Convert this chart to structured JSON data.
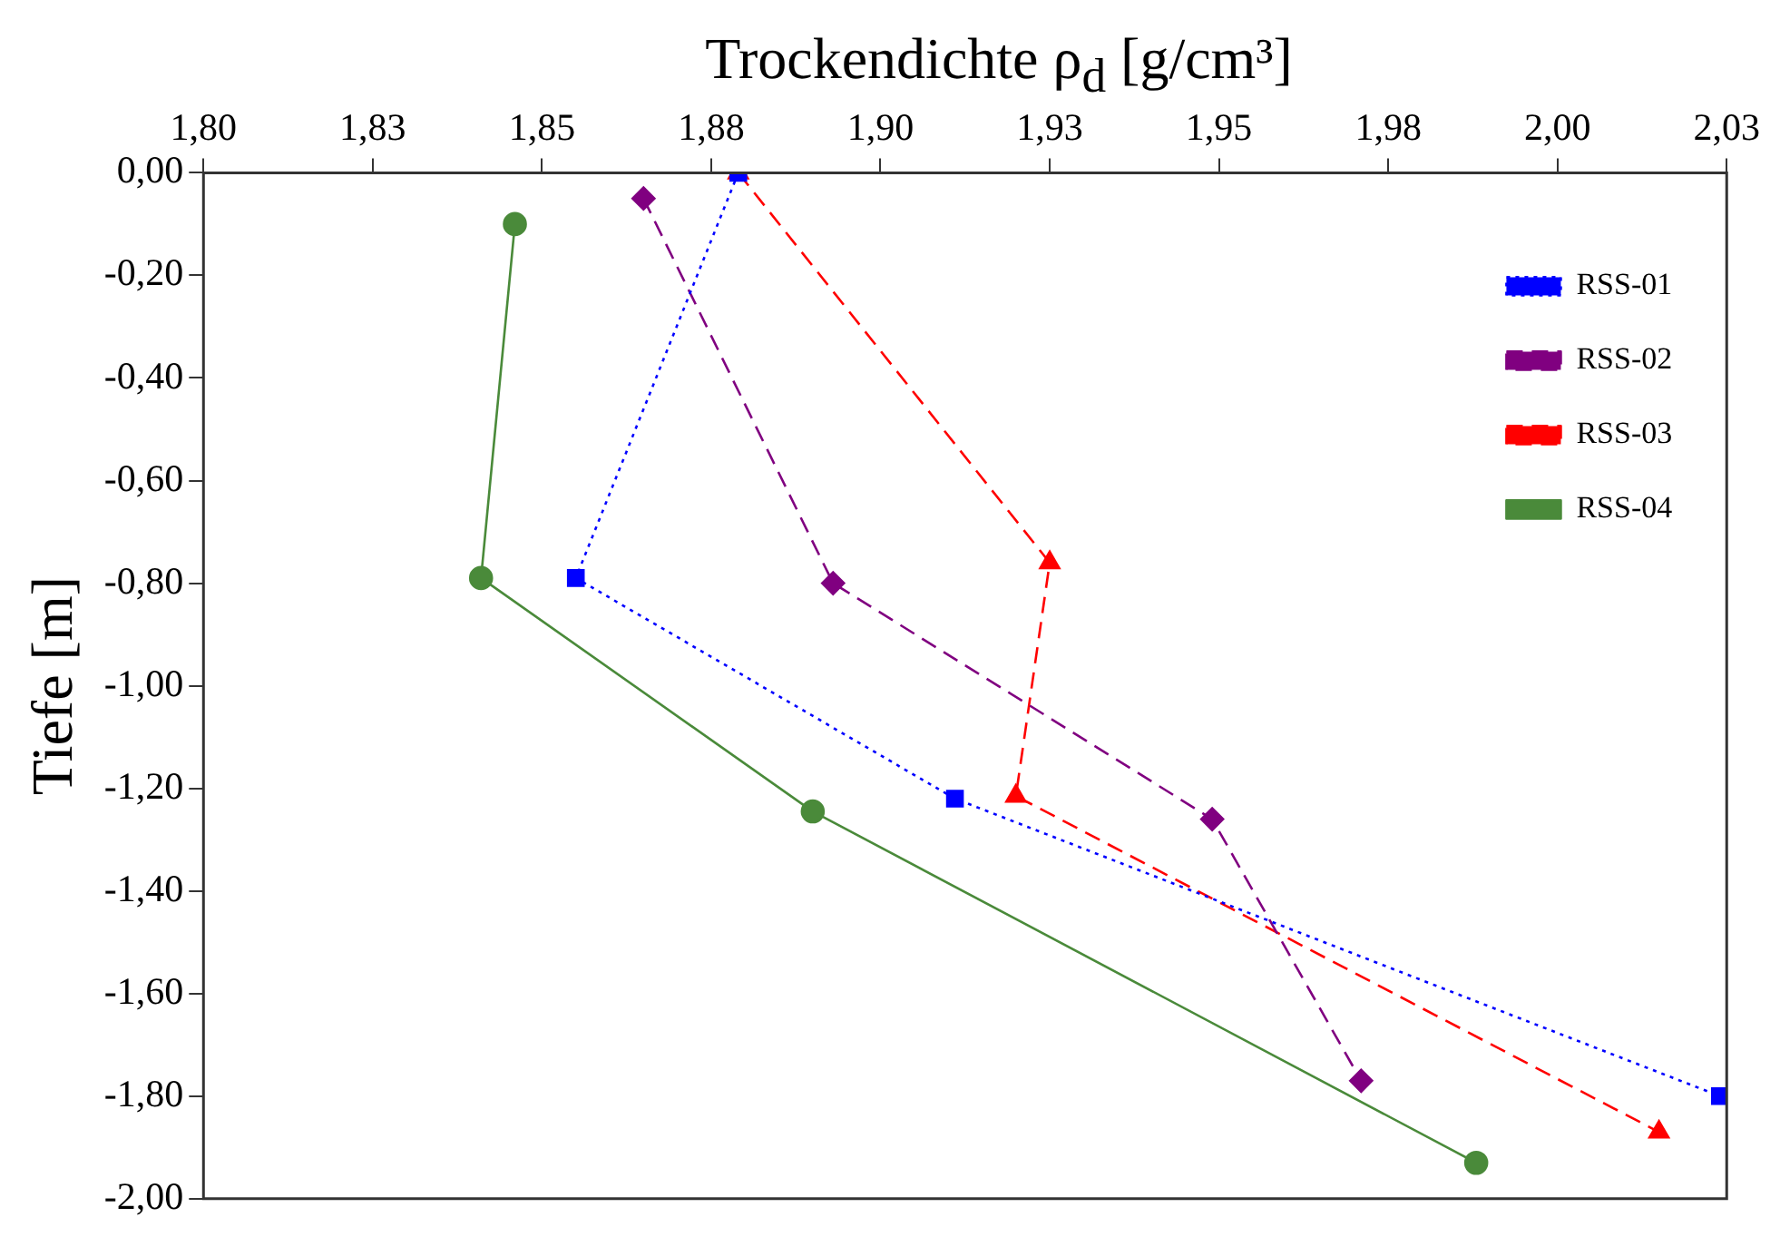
{
  "chart_data": {
    "type": "line",
    "xlabel": "Trockendichte ρ$_{d}$ [g/cm³]",
    "ylabel": "Tiefe [m]",
    "xlim": [
      1.8,
      2.025
    ],
    "xticks": [
      {
        "value": 1.8,
        "label": "1,80"
      },
      {
        "value": 1.825,
        "label": "1,83"
      },
      {
        "value": 1.85,
        "label": "1,85"
      },
      {
        "value": 1.875,
        "label": "1,88"
      },
      {
        "value": 1.9,
        "label": "1,90"
      },
      {
        "value": 1.925,
        "label": "1,93"
      },
      {
        "value": 1.95,
        "label": "1,95"
      },
      {
        "value": 1.975,
        "label": "1,98"
      },
      {
        "value": 2.0,
        "label": "2,00"
      },
      {
        "value": 2.025,
        "label": "2,03"
      }
    ],
    "ylim": [
      -2,
      0
    ],
    "yticks": [
      {
        "value": 0,
        "label": "0,00"
      },
      {
        "value": -0.2,
        "label": "-0,20"
      },
      {
        "value": -0.4,
        "label": "-0,40"
      },
      {
        "value": -0.6,
        "label": "-0,60"
      },
      {
        "value": -0.8,
        "label": "-0,80"
      },
      {
        "value": -1.0,
        "label": "-1,00"
      },
      {
        "value": -1.2,
        "label": "-1,20"
      },
      {
        "value": -1.4,
        "label": "-1,40"
      },
      {
        "value": -1.6,
        "label": "-1,60"
      },
      {
        "value": -1.8,
        "label": "-1,80"
      },
      {
        "value": -2.0,
        "label": "-2,00"
      }
    ],
    "grid": false,
    "legend": "top right",
    "series": [
      {
        "name": "RSS-01",
        "color": "#0000ff",
        "marker": "square",
        "line_style": "dotted",
        "x": [
          1.879,
          1.855,
          1.911,
          2.024
        ],
        "values": [
          0,
          -0.79,
          -1.22,
          -1.8
        ]
      },
      {
        "name": "RSS-02",
        "color": "#800080",
        "marker": "diamond",
        "line_style": "dashed",
        "x": [
          1.865,
          1.893,
          1.949,
          1.971
        ],
        "values": [
          -0.05,
          -0.8,
          -1.26,
          -1.77
        ]
      },
      {
        "name": "RSS-03",
        "color": "#ff0000",
        "marker": "triangle",
        "line_style": "dashed",
        "x": [
          1.879,
          1.925,
          1.92,
          2.015
        ],
        "values": [
          0,
          -0.76,
          -1.215,
          -1.87
        ]
      },
      {
        "name": "RSS-04",
        "color": "#4a8a3a",
        "marker": "circle",
        "line_style": "solid",
        "x": [
          1.846,
          1.841,
          1.89,
          1.988
        ],
        "values": [
          -0.1,
          -0.79,
          -1.245,
          -1.93
        ]
      }
    ]
  }
}
